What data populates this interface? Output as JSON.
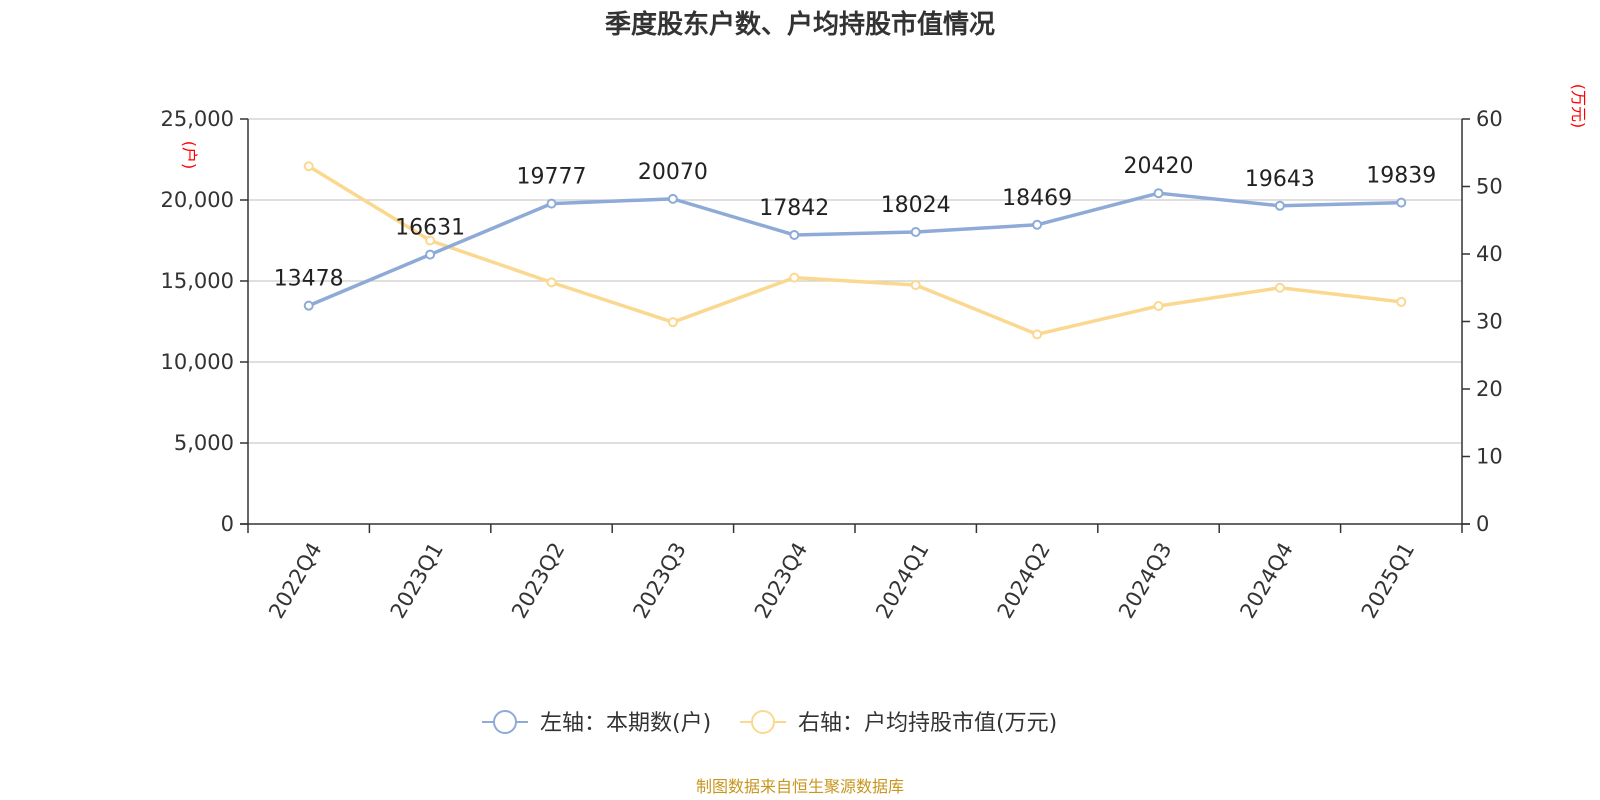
{
  "chart_data": {
    "type": "line",
    "title": "季度股东户数、户均持股市值情况",
    "categories": [
      "2022Q4",
      "2023Q1",
      "2023Q2",
      "2023Q3",
      "2023Q4",
      "2024Q1",
      "2024Q2",
      "2024Q3",
      "2024Q4",
      "2025Q1"
    ],
    "left_axis": {
      "unit_label": "(户)",
      "range": [
        0,
        25000
      ],
      "ticks": [
        "0",
        "5,000",
        "10,000",
        "15,000",
        "20,000",
        "25,000"
      ],
      "tick_values": [
        0,
        5000,
        10000,
        15000,
        20000,
        25000
      ]
    },
    "right_axis": {
      "unit_label": "(万元)",
      "range": [
        0,
        60
      ],
      "ticks": [
        "0",
        "10",
        "20",
        "30",
        "40",
        "50",
        "60"
      ],
      "tick_values": [
        0,
        10,
        20,
        30,
        40,
        50,
        60
      ]
    },
    "series": [
      {
        "name": "左轴：本期数(户)",
        "axis": "left",
        "color": "#8eaad6",
        "values": [
          13478,
          16631,
          19777,
          20070,
          17842,
          18024,
          18469,
          20420,
          19643,
          19839
        ],
        "labels": [
          "13478",
          "16631",
          "19777",
          "20070",
          "17842",
          "18024",
          "18469",
          "20420",
          "19643",
          "19839"
        ]
      },
      {
        "name": "右轴：户均持股市值(万元)",
        "axis": "right",
        "color": "#fbd890",
        "values": [
          53,
          42,
          35.8,
          29.9,
          36.5,
          35.4,
          28.1,
          32.3,
          35,
          32.9
        ]
      }
    ],
    "grid": true,
    "legend_position": "bottom-center",
    "source": "制图数据来自恒生聚源数据库"
  }
}
